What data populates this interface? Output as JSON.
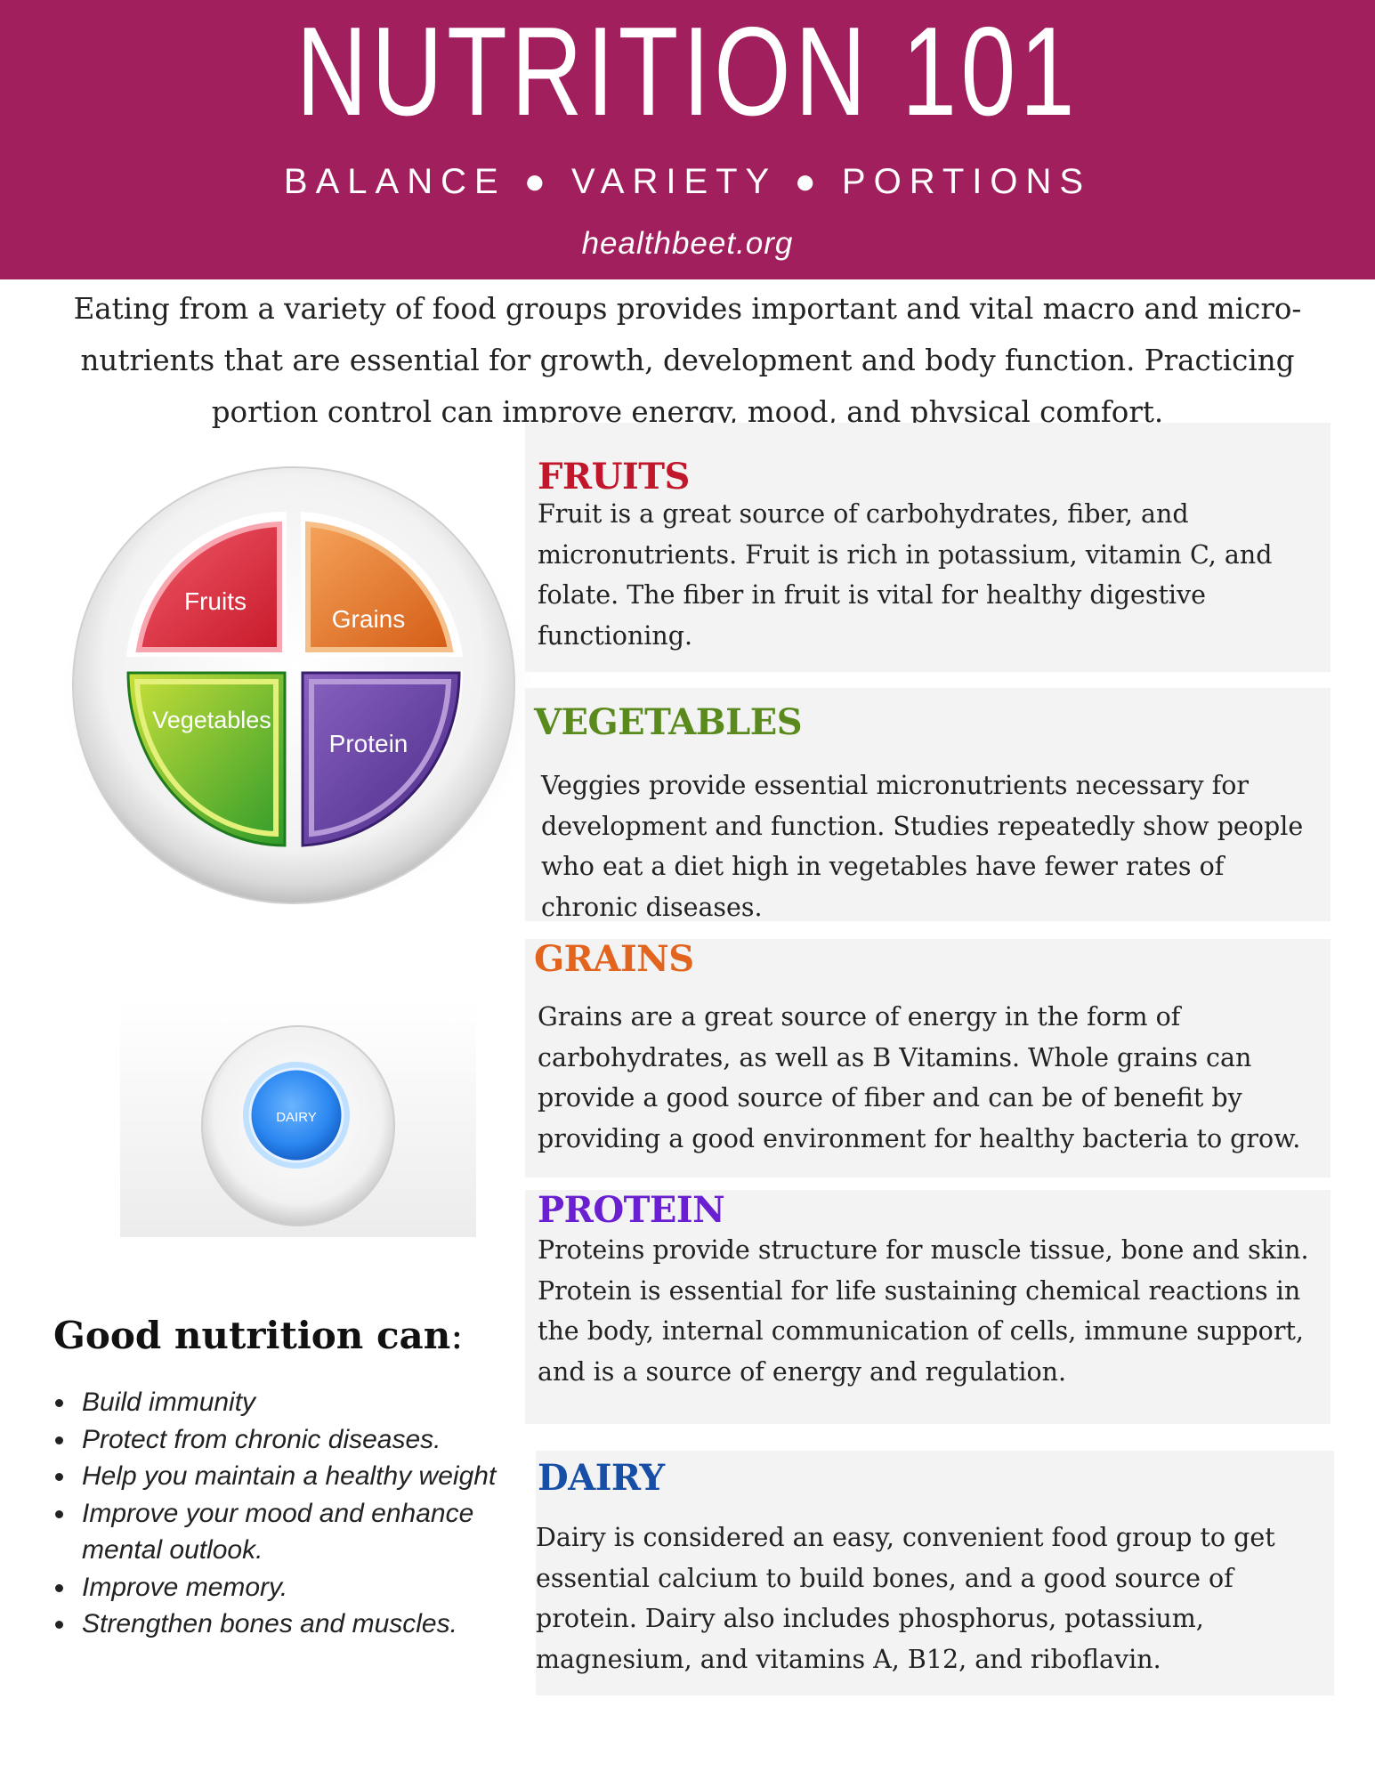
{
  "header": {
    "title": "NUTRITION 101",
    "tagline": "BALANCE ● VARIETY ● PORTIONS",
    "site": "healthbeet.org",
    "color": "#a11f5d"
  },
  "intro": "Eating from a variety of food groups provides important and vital macro and micro-nutrients that are essential for growth, development and body function.  Practicing portion control can improve energy, mood, and physical comfort.",
  "plate": {
    "fruits": "Fruits",
    "grains": "Grains",
    "vegetables": "Vegetables",
    "protein": "Protein",
    "dairy": "DAIRY"
  },
  "sections": {
    "fruits": {
      "title": "FRUITS",
      "color": "#c0172a",
      "text": "Fruit is a great source of carbohydrates, fiber, and micronutrients.  Fruit is rich in potassium, vitamin C, and folate.  The fiber in fruit is vital for healthy digestive functioning."
    },
    "vegetables": {
      "title": "VEGETABLES",
      "color": "#5a8a1e",
      "text": "Veggies provide essential micronutrients necessary for development and function.   Studies repeatedly show people who eat a diet high in vegetables have fewer rates of chronic diseases."
    },
    "grains": {
      "title": "GRAINS",
      "color": "#e2641e",
      "text": "Grains are a great source of energy in the form of carbohydrates, as well as B Vitamins.  Whole grains can provide a good source of fiber and can be of benefit by providing a good environment for healthy bacteria to grow."
    },
    "protein": {
      "title": "PROTEIN",
      "color": "#6a1fd0",
      "text": "Proteins provide structure for muscle tissue, bone and skin.  Protein is essential for life sustaining chemical reactions in the body, internal communication of cells,  immune support, and is a source of energy and regulation."
    },
    "dairy": {
      "title": "DAIRY",
      "color": "#174ea6",
      "text": "Dairy is considered an easy, convenient food group to get essential calcium to build bones, and a good source of protein.  Dairy also includes phosphorus, potassium, magnesium, and vitamins A, B12, and riboflavin."
    }
  },
  "good_nutrition": {
    "title": "Good nutrition can",
    "colon": ":",
    "items": [
      "Build immunity",
      "Protect from chronic diseases.",
      "Help you maintain a healthy weight",
      "Improve your mood and enhance mental outlook.",
      "Improve memory.",
      "Strengthen bones and muscles."
    ]
  }
}
